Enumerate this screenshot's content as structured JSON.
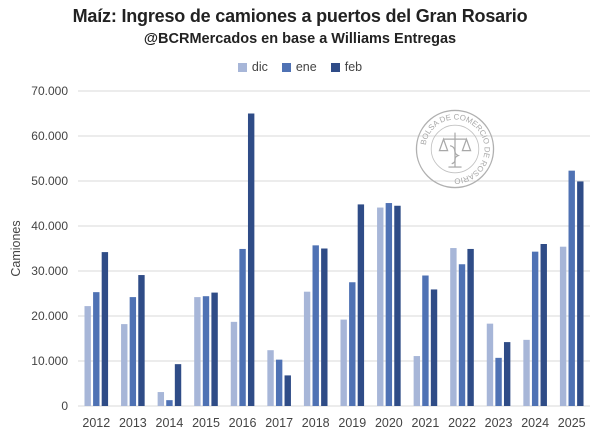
{
  "header": {
    "title": "Maíz: Ingreso de camiones a puertos del Gran Rosario",
    "subtitle": "@BCRMercados en base a Williams Entregas"
  },
  "watermark": {
    "text": "BOLSA DE COMERCIO DE ROSARIO"
  },
  "colors": {
    "dic": "#a7b6d8",
    "ene": "#4f72b4",
    "feb": "#2f4c87",
    "grid": "#d9d9d9",
    "axis_text": "#444444"
  },
  "chart_data": {
    "type": "bar",
    "title": "Maíz: Ingreso de camiones a puertos del Gran Rosario",
    "subtitle": "@BCRMercados en base a Williams Entregas",
    "xlabel": "",
    "ylabel": "Camiones",
    "ylim": [
      0,
      70000
    ],
    "yticks": [
      0,
      10000,
      20000,
      30000,
      40000,
      50000,
      60000,
      70000
    ],
    "ytick_labels": [
      "0",
      "10.000",
      "20.000",
      "30.000",
      "40.000",
      "50.000",
      "60.000",
      "70.000"
    ],
    "grid": true,
    "legend_position": "top-center",
    "categories": [
      "2012",
      "2013",
      "2014",
      "2015",
      "2016",
      "2017",
      "2018",
      "2019",
      "2020",
      "2021",
      "2022",
      "2023",
      "2024",
      "2025"
    ],
    "series": [
      {
        "name": "dic",
        "values": [
          22200,
          18200,
          3100,
          24200,
          18700,
          12400,
          25400,
          19200,
          44100,
          11100,
          35100,
          18300,
          14700,
          35400
        ]
      },
      {
        "name": "ene",
        "values": [
          25300,
          24200,
          1300,
          24400,
          34900,
          10300,
          35700,
          27500,
          45100,
          29000,
          31500,
          10700,
          34300,
          52300
        ]
      },
      {
        "name": "feb",
        "values": [
          34200,
          29100,
          9300,
          25200,
          65000,
          6800,
          35000,
          44800,
          44500,
          25900,
          34900,
          14200,
          36000,
          49900
        ]
      }
    ]
  }
}
